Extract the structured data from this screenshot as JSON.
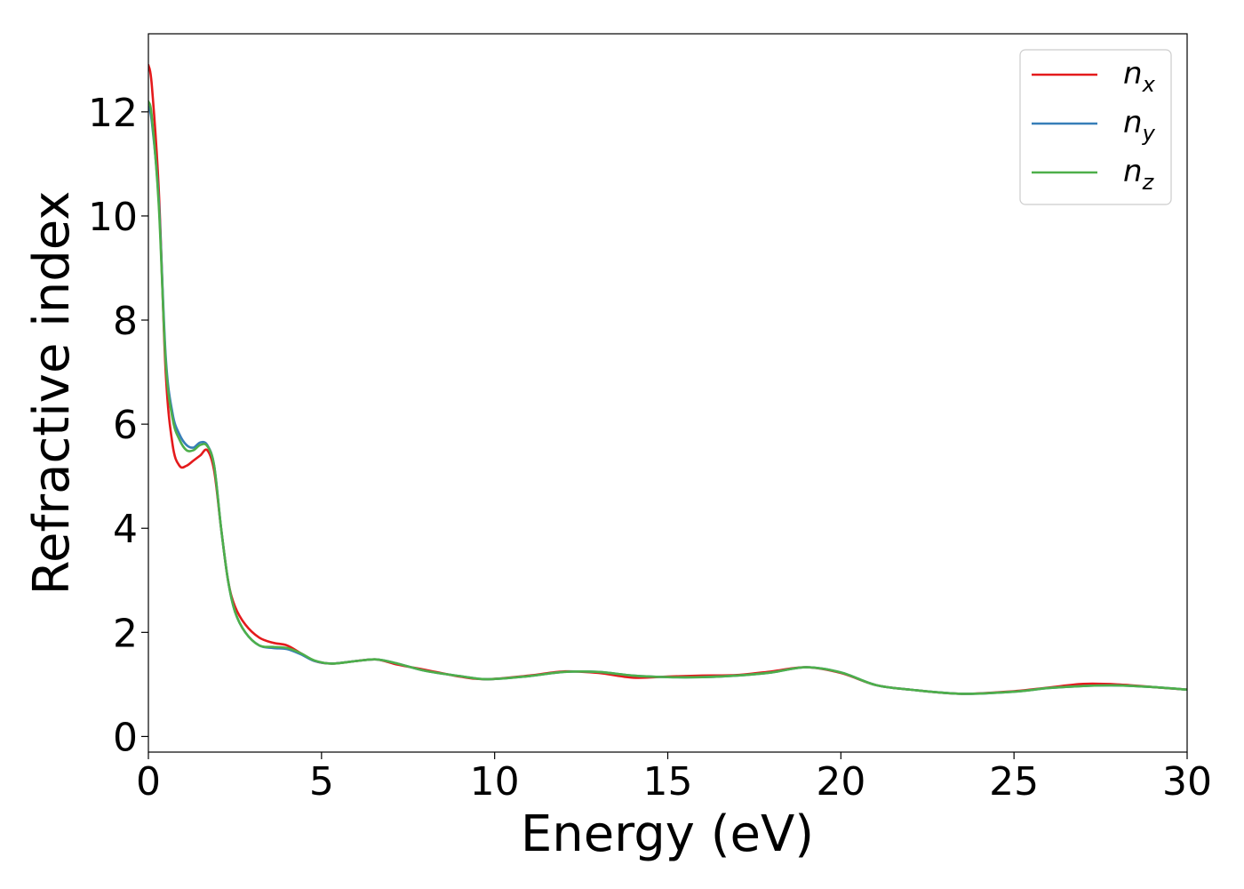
{
  "chart_data": {
    "type": "line",
    "title": "",
    "xlabel": "Energy (eV)",
    "ylabel": "Refractive index",
    "xlim": [
      0,
      30
    ],
    "ylim": [
      -0.3,
      13.5
    ],
    "xticks": [
      0,
      5,
      10,
      15,
      20,
      25,
      30
    ],
    "xtick_labels": [
      "0",
      "5",
      "10",
      "15",
      "20",
      "25",
      "30"
    ],
    "yticks": [
      0,
      2,
      4,
      6,
      8,
      10,
      12
    ],
    "ytick_labels": [
      "0",
      "2",
      "4",
      "6",
      "8",
      "10",
      "12"
    ],
    "grid": false,
    "legend_position": "top-right",
    "series": [
      {
        "name": "n_x",
        "base": "n",
        "sub": "x",
        "color": "#e41a1c",
        "x": [
          0,
          0.1,
          0.3,
          0.5,
          0.7,
          0.9,
          1.1,
          1.3,
          1.5,
          1.7,
          1.9,
          2.1,
          2.3,
          2.5,
          2.8,
          3.2,
          3.6,
          4.0,
          4.4,
          4.8,
          5.3,
          6.0,
          6.6,
          7.2,
          8.0,
          9.0,
          9.8,
          11.0,
          12.0,
          13.0,
          14.0,
          15.0,
          16.0,
          17.0,
          18.0,
          19.0,
          20.0,
          21.0,
          22.0,
          23.5,
          25.0,
          26.0,
          27.0,
          28.0,
          29.0,
          30.0
        ],
        "y": [
          12.9,
          12.5,
          10.5,
          7.0,
          5.6,
          5.2,
          5.2,
          5.3,
          5.4,
          5.5,
          5.1,
          4.0,
          3.0,
          2.5,
          2.15,
          1.9,
          1.8,
          1.75,
          1.6,
          1.45,
          1.4,
          1.45,
          1.48,
          1.38,
          1.28,
          1.15,
          1.1,
          1.17,
          1.25,
          1.22,
          1.13,
          1.15,
          1.17,
          1.18,
          1.25,
          1.33,
          1.22,
          0.99,
          0.9,
          0.82,
          0.87,
          0.94,
          1.01,
          1.0,
          0.95,
          0.9
        ]
      },
      {
        "name": "n_y",
        "base": "n",
        "sub": "y",
        "color": "#377eb8",
        "x": [
          0,
          0.1,
          0.3,
          0.5,
          0.7,
          0.9,
          1.1,
          1.3,
          1.5,
          1.7,
          1.9,
          2.1,
          2.3,
          2.5,
          2.8,
          3.2,
          3.6,
          4.0,
          4.4,
          4.8,
          5.3,
          6.0,
          6.6,
          7.2,
          8.0,
          9.0,
          9.8,
          11.0,
          12.0,
          13.0,
          14.0,
          15.0,
          16.0,
          17.0,
          18.0,
          19.0,
          20.0,
          21.0,
          22.0,
          23.5,
          25.0,
          26.0,
          27.0,
          28.0,
          29.0,
          30.0
        ],
        "y": [
          12.1,
          11.8,
          10.3,
          7.3,
          6.2,
          5.8,
          5.6,
          5.55,
          5.65,
          5.6,
          5.2,
          4.0,
          3.0,
          2.4,
          2.0,
          1.75,
          1.7,
          1.68,
          1.58,
          1.45,
          1.4,
          1.45,
          1.48,
          1.4,
          1.26,
          1.16,
          1.1,
          1.16,
          1.24,
          1.24,
          1.17,
          1.14,
          1.14,
          1.17,
          1.23,
          1.33,
          1.23,
          0.99,
          0.9,
          0.82,
          0.86,
          0.93,
          0.97,
          0.98,
          0.95,
          0.9
        ]
      },
      {
        "name": "n_z",
        "base": "n",
        "sub": "z",
        "color": "#4daf4a",
        "x": [
          0,
          0.1,
          0.3,
          0.5,
          0.7,
          0.9,
          1.1,
          1.3,
          1.5,
          1.7,
          1.9,
          2.1,
          2.3,
          2.5,
          2.8,
          3.2,
          3.6,
          4.0,
          4.4,
          4.8,
          5.3,
          6.0,
          6.6,
          7.2,
          8.0,
          9.0,
          9.8,
          11.0,
          12.0,
          13.0,
          14.0,
          15.0,
          16.0,
          17.0,
          18.0,
          19.0,
          20.0,
          21.0,
          22.0,
          23.5,
          25.0,
          26.0,
          27.0,
          28.0,
          29.0,
          30.0
        ],
        "y": [
          12.2,
          11.9,
          10.2,
          7.2,
          6.1,
          5.7,
          5.5,
          5.5,
          5.6,
          5.58,
          5.2,
          4.0,
          3.0,
          2.4,
          2.0,
          1.75,
          1.72,
          1.7,
          1.6,
          1.46,
          1.4,
          1.45,
          1.48,
          1.4,
          1.26,
          1.16,
          1.1,
          1.16,
          1.24,
          1.24,
          1.17,
          1.14,
          1.14,
          1.17,
          1.23,
          1.33,
          1.23,
          0.99,
          0.9,
          0.82,
          0.86,
          0.93,
          0.97,
          0.98,
          0.95,
          0.9
        ]
      }
    ]
  }
}
